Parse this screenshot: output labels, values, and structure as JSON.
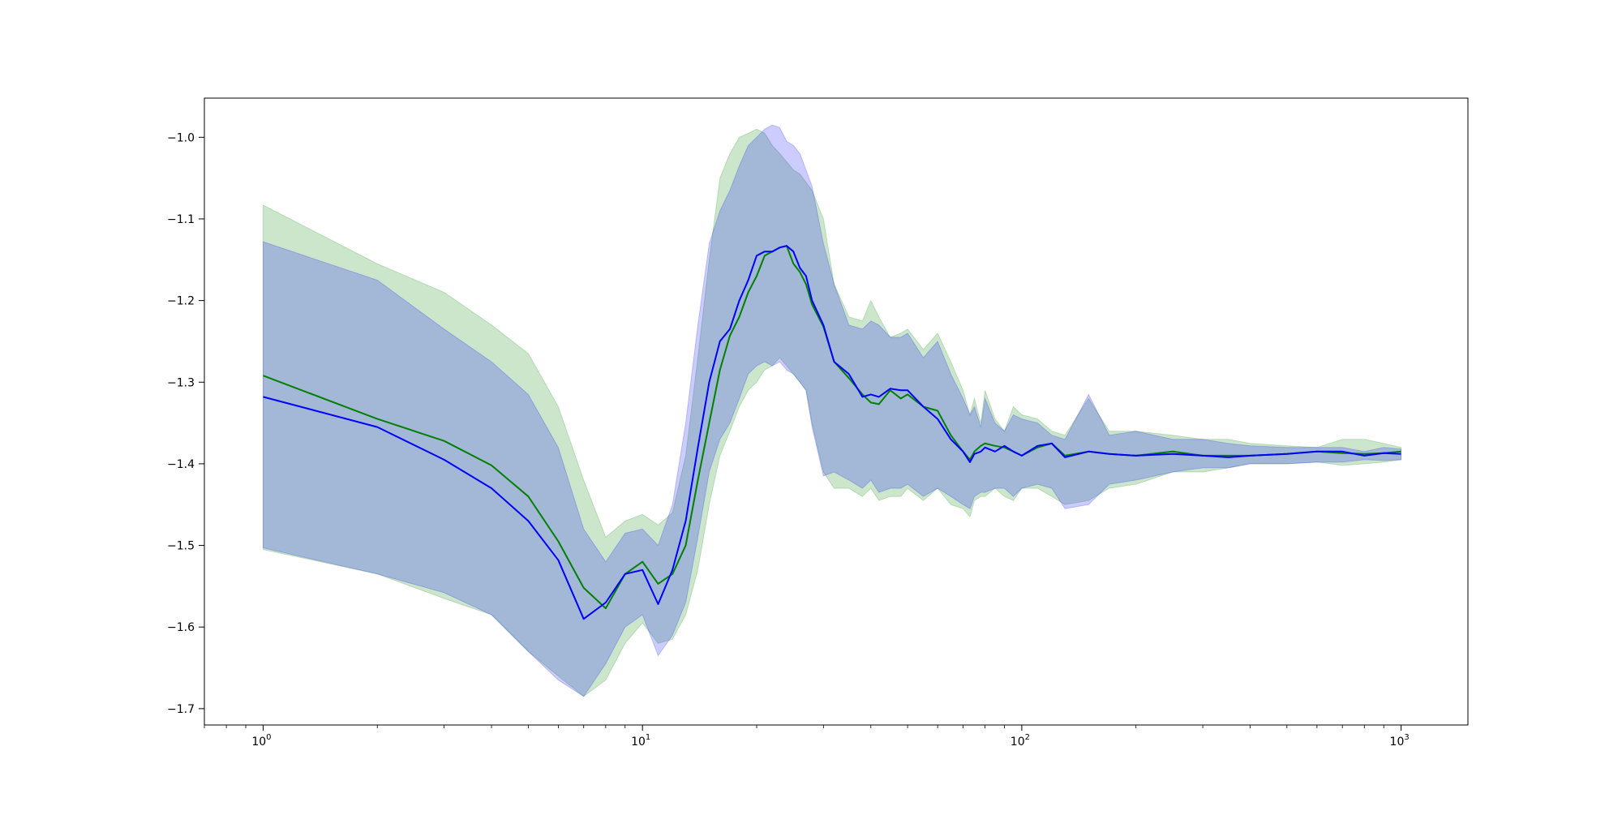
{
  "chart_data": {
    "type": "line",
    "title": "",
    "xlabel": "",
    "ylabel": "",
    "xscale": "log",
    "xlim": [
      0.7,
      1500
    ],
    "ylim": [
      -1.72,
      -0.952
    ],
    "grid": false,
    "legend": "none",
    "x_ticks": [
      {
        "value": 1,
        "base": "10",
        "exp": "0"
      },
      {
        "value": 10,
        "base": "10",
        "exp": "1"
      },
      {
        "value": 100,
        "base": "10",
        "exp": "2"
      },
      {
        "value": 1000,
        "base": "10",
        "exp": "3"
      }
    ],
    "y_ticks": [
      {
        "value": -1.7,
        "label": "−1.7"
      },
      {
        "value": -1.6,
        "label": "−1.6"
      },
      {
        "value": -1.5,
        "label": "−1.5"
      },
      {
        "value": -1.4,
        "label": "−1.4"
      },
      {
        "value": -1.3,
        "label": "−1.3"
      },
      {
        "value": -1.2,
        "label": "−1.2"
      },
      {
        "value": -1.1,
        "label": "−1.1"
      },
      {
        "value": -1.0,
        "label": "−1.0"
      }
    ],
    "series": [
      {
        "color": "#008000",
        "band_color": "#008000",
        "band_opacity": 0.2,
        "x": [
          1,
          2,
          3,
          4,
          5,
          6,
          7,
          8,
          9,
          10,
          11,
          12,
          13,
          14,
          15,
          16,
          17,
          18,
          19,
          20,
          21,
          22,
          23,
          24,
          25,
          26,
          27,
          28,
          30,
          32,
          35,
          38,
          40,
          42,
          45,
          48,
          50,
          55,
          60,
          65,
          70,
          73,
          75,
          78,
          80,
          85,
          90,
          95,
          100,
          110,
          120,
          130,
          150,
          170,
          200,
          250,
          300,
          350,
          400,
          500,
          600,
          700,
          800,
          900,
          1000
        ],
        "y": [
          -1.292,
          -1.345,
          -1.372,
          -1.402,
          -1.44,
          -1.495,
          -1.552,
          -1.577,
          -1.535,
          -1.52,
          -1.547,
          -1.535,
          -1.5,
          -1.42,
          -1.35,
          -1.285,
          -1.243,
          -1.22,
          -1.19,
          -1.17,
          -1.145,
          -1.14,
          -1.135,
          -1.133,
          -1.155,
          -1.165,
          -1.18,
          -1.205,
          -1.232,
          -1.275,
          -1.295,
          -1.315,
          -1.325,
          -1.327,
          -1.31,
          -1.32,
          -1.315,
          -1.33,
          -1.335,
          -1.365,
          -1.385,
          -1.395,
          -1.385,
          -1.378,
          -1.375,
          -1.378,
          -1.38,
          -1.385,
          -1.39,
          -1.38,
          -1.375,
          -1.39,
          -1.385,
          -1.388,
          -1.39,
          -1.385,
          -1.39,
          -1.39,
          -1.39,
          -1.388,
          -1.385,
          -1.387,
          -1.388,
          -1.387,
          -1.385
        ],
        "upper": [
          -1.083,
          -1.155,
          -1.19,
          -1.23,
          -1.265,
          -1.33,
          -1.42,
          -1.49,
          -1.47,
          -1.462,
          -1.475,
          -1.46,
          -1.39,
          -1.27,
          -1.15,
          -1.05,
          -1.02,
          -1.0,
          -0.995,
          -0.99,
          -0.995,
          -1.01,
          -1.02,
          -1.03,
          -1.04,
          -1.045,
          -1.055,
          -1.065,
          -1.1,
          -1.18,
          -1.22,
          -1.225,
          -1.2,
          -1.22,
          -1.245,
          -1.24,
          -1.235,
          -1.26,
          -1.24,
          -1.275,
          -1.31,
          -1.34,
          -1.32,
          -1.35,
          -1.31,
          -1.345,
          -1.36,
          -1.33,
          -1.34,
          -1.345,
          -1.36,
          -1.365,
          -1.32,
          -1.36,
          -1.36,
          -1.365,
          -1.37,
          -1.37,
          -1.375,
          -1.378,
          -1.38,
          -1.37,
          -1.37,
          -1.375,
          -1.38
        ],
        "lower": [
          -1.505,
          -1.535,
          -1.565,
          -1.585,
          -1.63,
          -1.66,
          -1.685,
          -1.665,
          -1.62,
          -1.595,
          -1.62,
          -1.615,
          -1.585,
          -1.53,
          -1.45,
          -1.39,
          -1.36,
          -1.33,
          -1.31,
          -1.3,
          -1.285,
          -1.28,
          -1.27,
          -1.28,
          -1.29,
          -1.3,
          -1.31,
          -1.35,
          -1.41,
          -1.43,
          -1.43,
          -1.44,
          -1.43,
          -1.445,
          -1.44,
          -1.44,
          -1.43,
          -1.445,
          -1.43,
          -1.45,
          -1.455,
          -1.465,
          -1.445,
          -1.44,
          -1.44,
          -1.43,
          -1.44,
          -1.445,
          -1.43,
          -1.43,
          -1.44,
          -1.45,
          -1.445,
          -1.43,
          -1.425,
          -1.41,
          -1.41,
          -1.405,
          -1.4,
          -1.4,
          -1.398,
          -1.402,
          -1.4,
          -1.398,
          -1.395
        ]
      },
      {
        "color": "#0000ff",
        "band_color": "#0000ff",
        "band_opacity": 0.2,
        "x": [
          1,
          2,
          3,
          4,
          5,
          6,
          7,
          8,
          9,
          10,
          11,
          12,
          13,
          14,
          15,
          16,
          17,
          18,
          19,
          20,
          21,
          22,
          23,
          24,
          25,
          26,
          27,
          28,
          30,
          32,
          35,
          38,
          40,
          42,
          45,
          48,
          50,
          55,
          60,
          65,
          70,
          73,
          75,
          78,
          80,
          85,
          90,
          95,
          100,
          110,
          120,
          130,
          150,
          170,
          200,
          250,
          300,
          350,
          400,
          500,
          600,
          700,
          800,
          900,
          1000
        ],
        "y": [
          -1.318,
          -1.355,
          -1.395,
          -1.43,
          -1.47,
          -1.518,
          -1.59,
          -1.57,
          -1.535,
          -1.53,
          -1.572,
          -1.53,
          -1.47,
          -1.38,
          -1.3,
          -1.25,
          -1.235,
          -1.2,
          -1.175,
          -1.145,
          -1.14,
          -1.14,
          -1.135,
          -1.133,
          -1.14,
          -1.16,
          -1.17,
          -1.2,
          -1.23,
          -1.275,
          -1.29,
          -1.318,
          -1.315,
          -1.318,
          -1.308,
          -1.31,
          -1.31,
          -1.33,
          -1.345,
          -1.37,
          -1.385,
          -1.398,
          -1.388,
          -1.385,
          -1.38,
          -1.385,
          -1.378,
          -1.385,
          -1.39,
          -1.378,
          -1.375,
          -1.392,
          -1.385,
          -1.388,
          -1.39,
          -1.388,
          -1.39,
          -1.392,
          -1.39,
          -1.388,
          -1.385,
          -1.385,
          -1.39,
          -1.387,
          -1.388
        ],
        "upper": [
          -1.128,
          -1.175,
          -1.235,
          -1.275,
          -1.315,
          -1.38,
          -1.48,
          -1.52,
          -1.485,
          -1.48,
          -1.5,
          -1.45,
          -1.35,
          -1.23,
          -1.13,
          -1.09,
          -1.065,
          -1.035,
          -1.01,
          -1.0,
          -0.99,
          -0.985,
          -0.988,
          -1.005,
          -1.01,
          -1.02,
          -1.04,
          -1.06,
          -1.13,
          -1.18,
          -1.23,
          -1.235,
          -1.225,
          -1.23,
          -1.245,
          -1.245,
          -1.24,
          -1.27,
          -1.25,
          -1.29,
          -1.32,
          -1.34,
          -1.33,
          -1.355,
          -1.32,
          -1.35,
          -1.36,
          -1.34,
          -1.345,
          -1.35,
          -1.365,
          -1.37,
          -1.315,
          -1.365,
          -1.36,
          -1.37,
          -1.37,
          -1.375,
          -1.378,
          -1.38,
          -1.38,
          -1.38,
          -1.385,
          -1.38,
          -1.382
        ],
        "lower": [
          -1.503,
          -1.535,
          -1.558,
          -1.585,
          -1.63,
          -1.665,
          -1.685,
          -1.645,
          -1.6,
          -1.585,
          -1.635,
          -1.61,
          -1.57,
          -1.49,
          -1.41,
          -1.37,
          -1.35,
          -1.32,
          -1.29,
          -1.28,
          -1.275,
          -1.28,
          -1.275,
          -1.285,
          -1.29,
          -1.3,
          -1.31,
          -1.355,
          -1.415,
          -1.41,
          -1.42,
          -1.43,
          -1.42,
          -1.435,
          -1.43,
          -1.43,
          -1.425,
          -1.44,
          -1.43,
          -1.44,
          -1.45,
          -1.455,
          -1.44,
          -1.435,
          -1.435,
          -1.43,
          -1.43,
          -1.44,
          -1.43,
          -1.425,
          -1.43,
          -1.455,
          -1.45,
          -1.425,
          -1.42,
          -1.41,
          -1.405,
          -1.405,
          -1.4,
          -1.4,
          -1.398,
          -1.398,
          -1.395,
          -1.396,
          -1.395
        ]
      }
    ]
  }
}
